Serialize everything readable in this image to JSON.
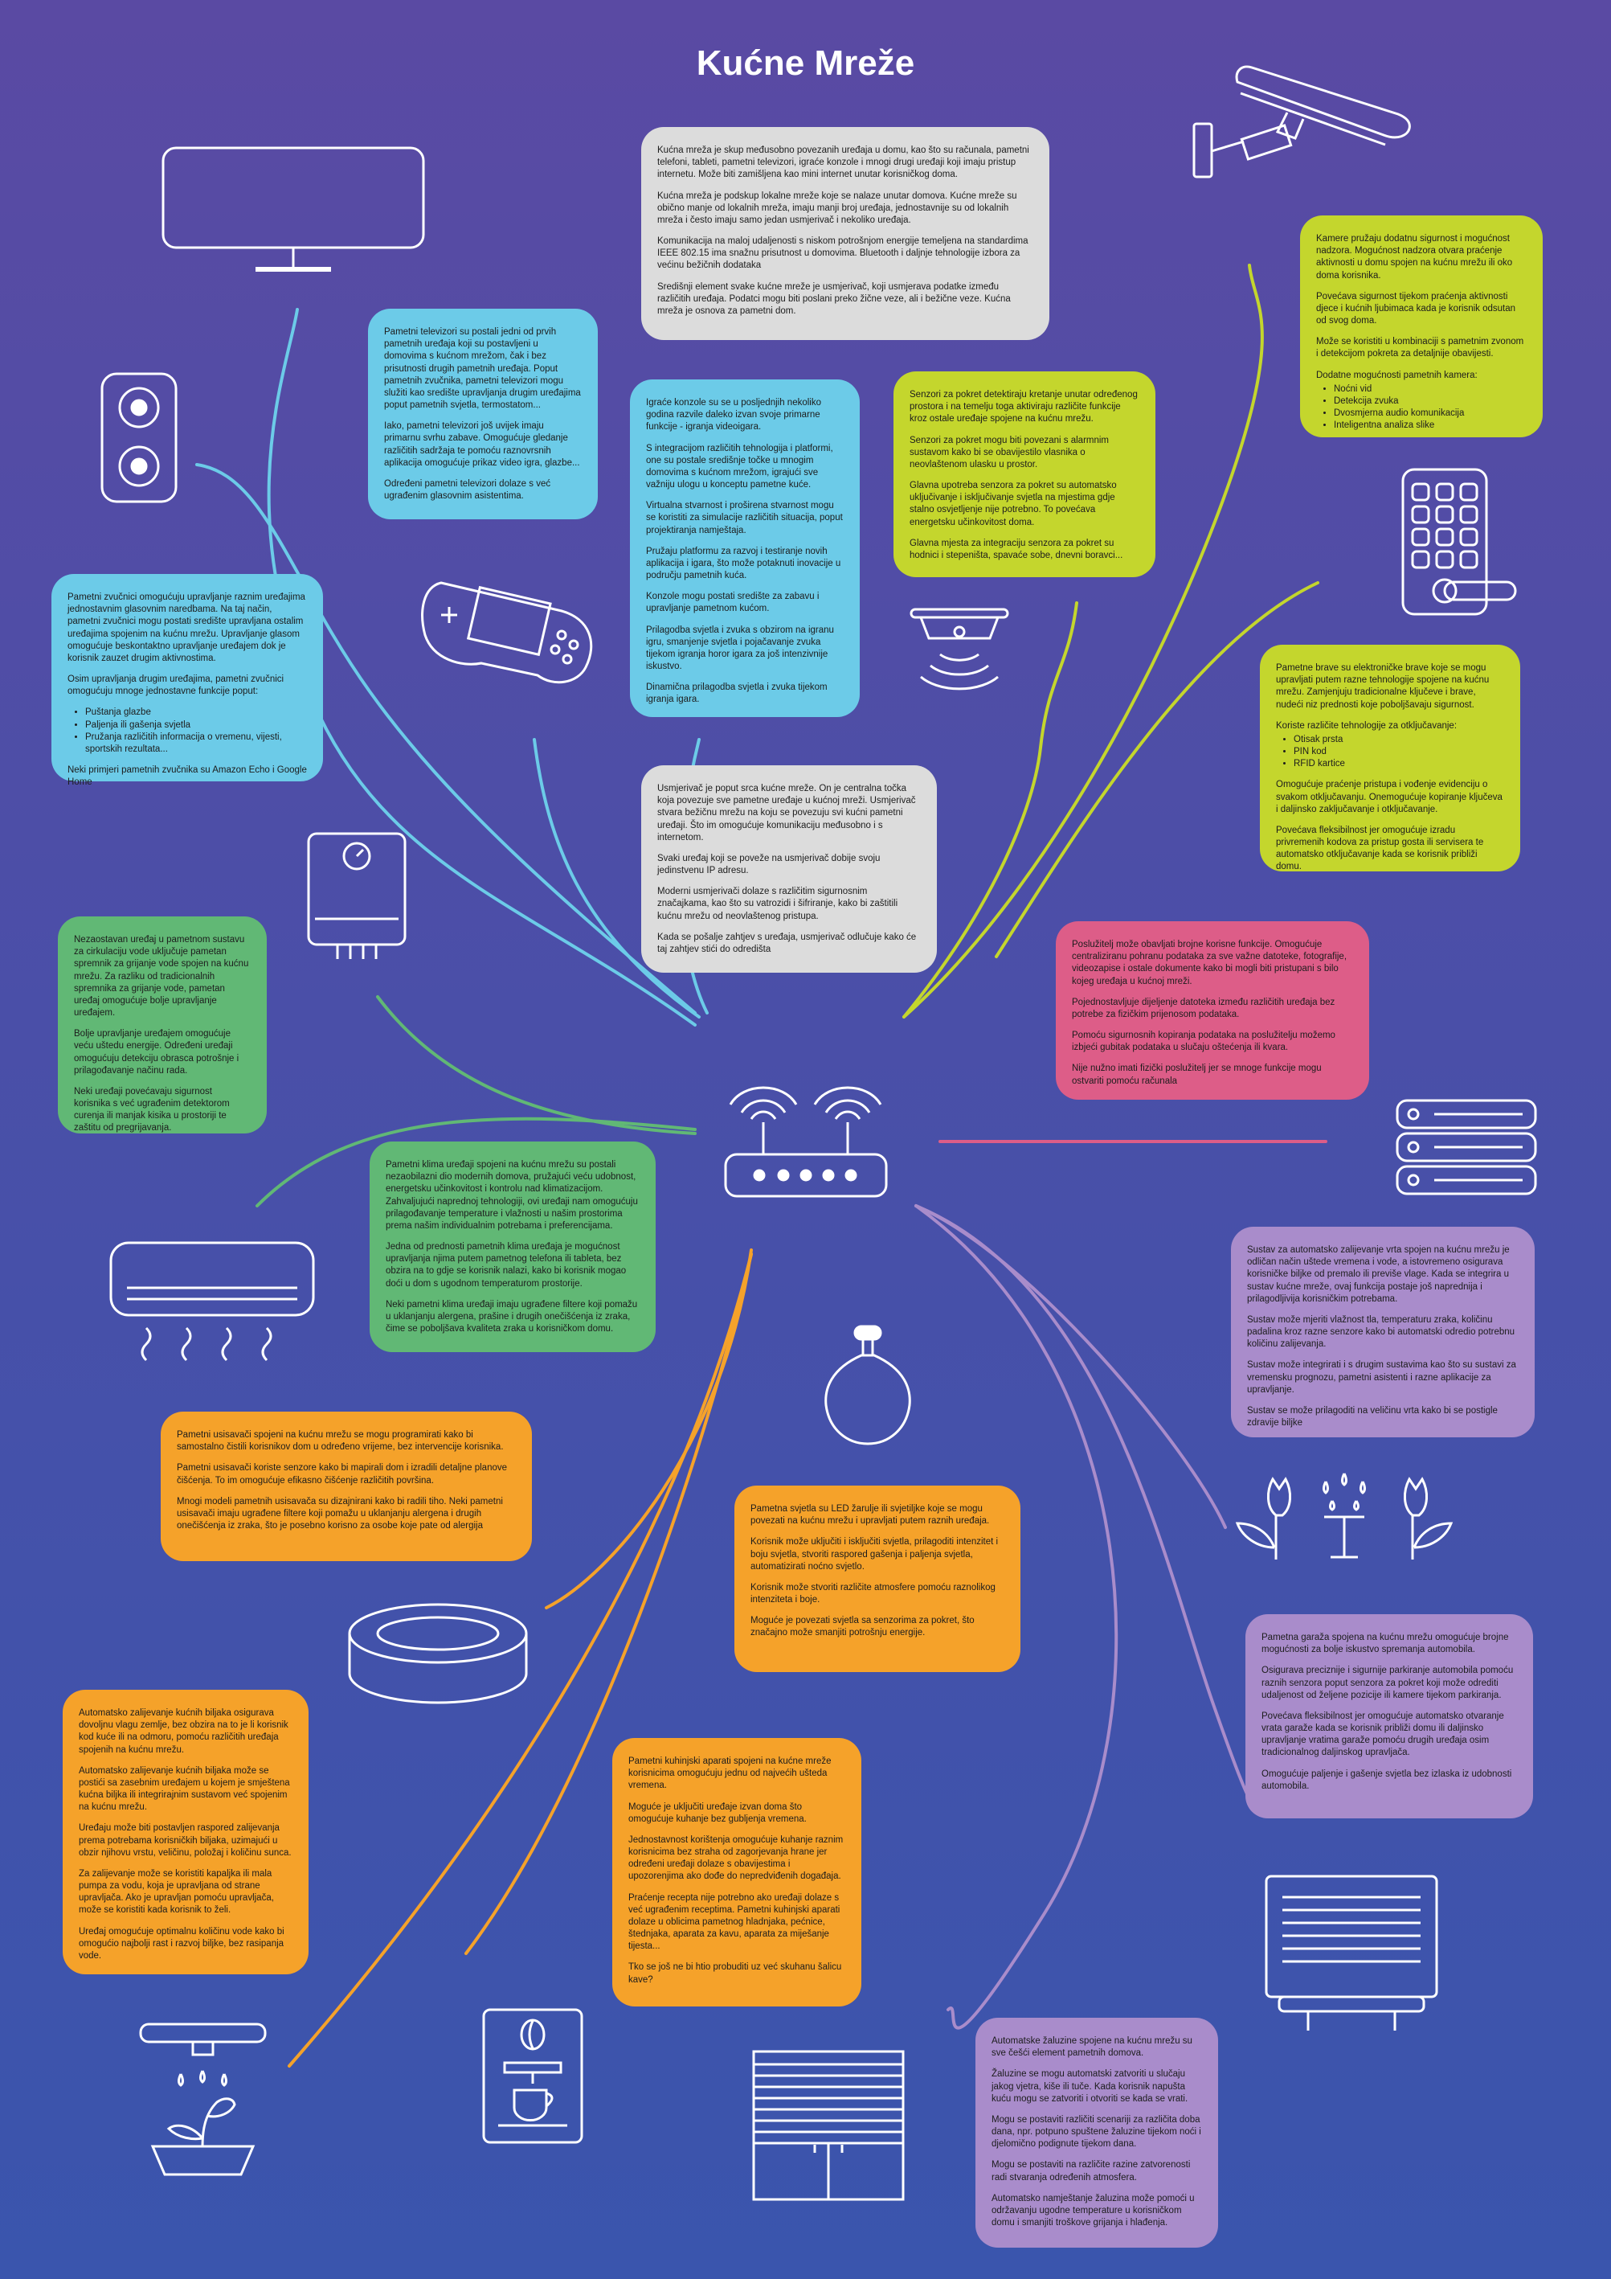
{
  "page": {
    "title": "Kućne Mreže",
    "colors": {
      "background_top": "#5a4aa3",
      "background_bottom": "#3a55ad",
      "line": "#ffffff"
    }
  },
  "icons": [
    "tv-icon",
    "speaker-icon",
    "game-console-icon",
    "water-heater-icon",
    "air-conditioner-icon",
    "robot-vacuum-icon",
    "watering-can-icon",
    "coffee-machine-icon",
    "blinds-icon",
    "garage-door-icon",
    "flower-sprinkler-icon",
    "server-icon",
    "light-bulb-icon",
    "router-icon",
    "motion-sensor-icon",
    "keypad-lock-icon",
    "security-camera-icon"
  ],
  "cards": {
    "intro": {
      "color": "#dcdcdc",
      "paragraphs": [
        "Kućna mreža je skup međusobno povezanih uređaja u domu, kao što su računala, pametni telefoni, tableti, pametni televizori, igraće konzole i mnogi drugi uređaji koji imaju pristup internetu. Može biti zamišljena kao mini internet unutar korisničkog doma.",
        "Kućna mreža je podskup lokalne mreže koje se nalaze unutar domova. Kućne mreže su obično manje od lokalnih mreža, imaju manji broj uređaja, jednostavnije su od lokalnih mreža i često imaju samo jedan usmjerivač i nekoliko uređaja.",
        "Komunikacija na maloj udaljenosti s niskom potrošnjom energije temeljena na standardima IEEE 802.15 ima snažnu prisutnost u domovima. Bluetooth i daljnje tehnologije izbora za većinu bežičnih dodataka",
        "Središnji element svake kućne mreže je usmjerivač, koji usmjerava podatke između različitih uređaja. Podatci mogu biti poslani preko žične veze, ali i bežične veze. Kućna mreža je osnova za pametni dom."
      ]
    },
    "tv": {
      "color": "#6ccbe8",
      "paragraphs": [
        "Pametni televizori su postali jedni od prvih pametnih uređaja koji su postavljeni u domovima s kućnom mrežom, čak i bez prisutnosti drugih pametnih uređaja. Poput pametnih zvučnika, pametni televizori mogu služiti kao središte upravljanja drugim uređajima poput pametnih svjetla, termostatom...",
        "Iako, pametni televizori još uvijek imaju primarnu svrhu zabave. Omogućuje gledanje različitih sadržaja te pomoću raznovrsnih aplikacija omogućuje prikaz video igra, glazbe...",
        "Određeni pametni televizori dolaze s već ugrađenim glasovnim asistentima."
      ]
    },
    "speaker": {
      "color": "#6ccbe8",
      "paragraphs": [
        "Pametni zvučnici omogućuju upravljanje raznim uređajima jednostavnim glasovnim naredbama. Na taj način, pametni zvučnici mogu postati središte upravljana ostalim uređajima spojenim na kućnu mrežu. Upravljanje glasom omogućuje beskontaktno upravljanje uređajem dok je korisnik zauzet drugim aktivnostima.",
        "Osim upravljanja drugim uređajima, pametni zvučnici omogućuju mnoge jednostavne funkcije poput:"
      ],
      "list": [
        "Puštanja glazbe",
        "Paljenja ili gašenja svjetla",
        "Pružanja različitih informacija o vremenu, vijesti, sportskih rezultata..."
      ],
      "after": [
        "Neki primjeri pametnih zvučnika su Amazon Echo i Google Home"
      ]
    },
    "console": {
      "color": "#6ccbe8",
      "paragraphs": [
        "Igraće konzole su se u posljednjih nekoliko godina razvile daleko izvan svoje primarne funkcije - igranja videoigara.",
        "S integracijom različitih tehnologija i platformi, one su postale središnje točke u mnogim domovima s kućnom mrežom, igrajući sve važniju ulogu u konceptu pametne kuće.",
        "Virtualna stvarnost i proširena stvarnost mogu se koristiti za simulacije različitih situacija, poput projektiranja namještaja.",
        "Pružaju platformu za razvoj i testiranje novih aplikacija i igara, što može potaknuti inovacije u području pametnih kuća.",
        "Konzole mogu postati središte za zabavu i upravljanje pametnom kućom.",
        "Prilagodba svjetla i zvuka s obzirom na igranu igru, smanjenje svjetla i pojačavanje zvuka tijekom igranja horor igara za još intenzivnije iskustvo.",
        "Dinamična prilagodba svjetla i zvuka tijekom igranja igara."
      ]
    },
    "sensor": {
      "color": "#c4d62d",
      "paragraphs": [
        "Senzori za pokret detektiraju kretanje unutar određenog prostora i na temelju toga aktiviraju različite funkcije kroz ostale uređaje spojene na kućnu mrežu.",
        "Senzori za pokret mogu biti povezani s alarmnim sustavom kako bi se obavijestilo vlasnika o neovlaštenom ulasku u prostor.",
        "Glavna upotreba senzora za pokret su automatsko uključivanje i isključivanje svjetla na mjestima gdje stalno osvjetljenje nije potrebno. To povećava energetsku učinkovitost doma.",
        "Glavna mjesta za integraciju senzora za pokret su hodnici i stepeništa, spavaće sobe, dnevni boravci..."
      ]
    },
    "camera": {
      "color": "#c4d62d",
      "paragraphs": [
        "Kamere pružaju dodatnu sigurnost i mogućnost nadzora. Mogućnost nadzora otvara praćenje aktivnosti u domu spojen na kućnu mrežu ili oko doma korisnika.",
        "Povećava sigurnost tijekom praćenja aktivnosti djece i kućnih ljubimaca kada je korisnik odsutan od svog doma.",
        "Može se koristiti u kombinaciji s pametnim zvonom i detekcijom pokreta za detaljnije obavijesti.",
        "Dodatne mogućnosti pametnih kamera:"
      ],
      "list": [
        "Noćni vid",
        "Detekcija zvuka",
        "Dvosmjerna audio komunikacija",
        "Inteligentna analiza slike"
      ]
    },
    "lock": {
      "color": "#c4d62d",
      "paragraphs": [
        "Pametne brave su elektroničke brave koje se mogu upravljati putem razne tehnologije spojene na kućnu mrežu. Zamjenjuju tradicionalne ključeve i brave, nudeći niz prednosti koje poboljšavaju sigurnost.",
        "Koriste različite tehnologije za otključavanje:"
      ],
      "list": [
        "Otisak prsta",
        "PIN kod",
        "RFID kartice"
      ],
      "after": [
        "Omogućuje praćenje pristupa i vođenje evidenciju o svakom otključavanju. Onemogućuje kopiranje ključeva i daljinsko zaključavanje i otključavanje.",
        "Povećava fleksibilnost jer omogućuje izradu privremenih kodova za pristup gosta ili servisera te automatsko otključavanje kada se korisnik približi domu."
      ]
    },
    "router": {
      "color": "#dcdcdc",
      "paragraphs": [
        "Usmjerivač je poput srca kućne mreže. On je centralna točka koja povezuje sve pametne uređaje u kućnoj mreži. Usmjerivač stvara bežičnu mrežu na koju se povezuju svi kućni pametni uređaji. Što im omogućuje komunikaciju međusobno i s internetom.",
        "Svaki uređaj koji se poveže na usmjerivač dobije svoju jedinstvenu IP adresu.",
        "Moderni usmjerivači dolaze s različitim sigurnosnim značajkama, kao što su vatrozidi i šifriranje, kako bi zaštitili kućnu mrežu od neovlaštenog pristupa.",
        "Kada se pošalje zahtjev s uređaja, usmjerivač odlučuje kako će taj zahtjev stići do odredišta"
      ]
    },
    "server": {
      "color": "#dd5d88",
      "paragraphs": [
        "Poslužitelj može obavljati brojne korisne funkcije. Omogućuje centraliziranu pohranu podataka za sve važne datoteke, fotografije, videozapise i ostale dokumente kako bi mogli biti pristupani s bilo kojeg uređaja u kućnoj mreži.",
        "Pojednostavljuje dijeljenje datoteka između različitih uređaja bez potrebe za fizičkim prijenosom podataka.",
        "Pomoću sigurnosnih kopiranja podataka na poslužitelju možemo izbjeći gubitak podataka u slučaju oštećenja ili kvara.",
        "Nije nužno imati fizički poslužitelj jer se mnoge funkcije mogu ostvariti pomoću računala"
      ]
    },
    "boiler": {
      "color": "#61b875",
      "paragraphs": [
        "Nezaostavan uređaj u pametnom sustavu za cirkulaciju vode uključuje pametan spremnik za grijanje vode spojen na kućnu mrežu. Za razliku od tradicionalnih spremnika za grijanje vode, pametan uređaj omogućuje bolje upravljanje uređajem.",
        "Bolje upravljanje uređajem omogućuje veću uštedu energije. Određeni uređaji omogućuju detekciju obrasca potrošnje i prilagođavanje načinu rada.",
        "Neki uređaji povećavaju sigurnost korisnika s već ugrađenim detektorom curenja ili manjak kisika u prostoriji te zaštitu od pregrijavanja."
      ]
    },
    "ac": {
      "color": "#61b875",
      "paragraphs": [
        "Pametni klima uređaji spojeni na kućnu mrežu su postali nezaobilazni dio modernih domova, pružajući veću udobnost, energetsku učinkovitost i kontrolu nad klimatizacijom. Zahvaljujući naprednoj tehnologiji, ovi uređaji nam omogućuju prilagođavanje temperature i vlažnosti u našim prostorima prema našim individualnim potrebama i preferencijama.",
        "Jedna od prednosti pametnih klima uređaja je mogućnost upravljanja njima putem pametnog telefona ili tableta, bez obzira na to gdje se korisnik nalazi, kako bi korisnik mogao doći u dom s ugodnom temperaturom prostorije.",
        "Neki pametni klima uređaji imaju ugrađene filtere koji pomažu u uklanjanju alergena, prašine i drugih onečišćenja iz zraka, čime se poboljšava kvaliteta zraka u korisničkom domu."
      ]
    },
    "vacuum": {
      "color": "#f5a22a",
      "paragraphs": [
        "Pametni usisavači spojeni na kućnu mrežu se mogu programirati kako bi samostalno čistili korisnikov dom u određeno vrijeme, bez intervencije korisnika.",
        "Pametni usisavači koriste senzore kako bi mapirali dom i izradili detaljne planove čišćenja. To im omogućuje efikasno čišćenje različitih površina.",
        "Mnogi modeli pametnih usisavača su dizajnirani kako bi radili tiho. Neki pametni usisavači imaju ugrađene filtere koji pomažu u uklanjanju alergena i drugih onečišćenja iz zraka, što je posebno korisno za osobe koje pate od alergija"
      ]
    },
    "light": {
      "color": "#f5a22a",
      "paragraphs": [
        "Pametna svjetla su LED žarulje ili svjetiljke koje se mogu povezati na kućnu mrežu i upravljati putem raznih uređaja.",
        "Korisnik može uključiti i isključiti svjetla, prilagoditi intenzitet i boju svjetla, stvoriti raspored gašenja i paljenja svjetla, automatizirati noćno svjetlo.",
        "Korisnik može stvoriti različite atmosfere pomoću raznolikog intenziteta i boje.",
        "Moguće je povezati svjetla sa senzorima za pokret, što značajno može smanjiti potrošnju energije."
      ]
    },
    "watering": {
      "color": "#f5a22a",
      "paragraphs": [
        "Automatsko zalijevanje kućnih biljaka osigurava dovoljnu vlagu zemlje, bez obzira na to je li korisnik kod kuće ili na odmoru, pomoću različitih uređaja spojenih na kućnu mrežu.",
        "Automatsko zalijevanje kućnih biljaka može se postići sa zasebnim uređajem u kojem je smještena kućna biljka ili integrirajnim sustavom već spojenim na kućnu mrežu.",
        "Uređaju može biti postavljen raspored zalijevanja prema potrebama korisničkih biljaka, uzimajući u obzir njihovu vrstu, veličinu, položaj i količinu sunca.",
        "Za zalijevanje može se koristiti kapaljka ili mala pumpa za vodu, koja je upravljana od strane upravljača. Ako je upravljan pomoću upravljača, može se koristiti kada korisnik to želi.",
        "Uređaj omogućuje optimalnu količinu vode kako bi omogućio najbolji rast i razvoj biljke, bez rasipanja vode."
      ]
    },
    "kitchen": {
      "color": "#f5a22a",
      "paragraphs": [
        "Pametni kuhinjski aparati spojeni na kućne mreže korisnicima omogućuju jednu od najvećih ušteda vremena.",
        "Moguće je uključiti uređaje izvan doma što omogućuje kuhanje bez gubljenja vremena.",
        "Jednostavnost korištenja omogućuje kuhanje raznim korisnicima bez straha od zagorjevanja hrane jer određeni uređaji dolaze s obavijestima i upozorenjima ako dođe do nepredviđenih događaja.",
        "Praćenje recepta nije potrebno ako uređaji dolaze s već ugrađenim receptima. Pametni kuhinjski aparati dolaze u oblicima pametnog hladnjaka, pećnice, štednjaka, aparata za kavu, aparata za miješanje tijesta...",
        "Tko se još ne bi htio probuditi uz već skuhanu šalicu kave?"
      ]
    },
    "garden": {
      "color": "#a98ccb",
      "paragraphs": [
        "Sustav za automatsko zalijevanje vrta spojen na kućnu mrežu je odličan način uštede vremena i vode, a istovremeno osigurava korisničke biljke od premalo ili previše vlage. Kada se integrira u sustav kućne mreže, ovaj funkcija postaje još naprednija i prilagodljivija korisničkim potrebama.",
        "Sustav može mjeriti vlažnost tla, temperaturu zraka, količinu padalina kroz razne senzore kako bi automatski odredio potrebnu količinu zalijevanja.",
        "Sustav može integrirati i s drugim sustavima kao što su sustavi za vremensku prognozu, pametni asistenti i razne aplikacije za upravljanje.",
        "Sustav se može prilagoditi na veličinu vrta kako bi se postigle zdravije biljke"
      ]
    },
    "garage": {
      "color": "#a98ccb",
      "paragraphs": [
        "Pametna garaža spojena na kućnu mrežu omogućuje brojne mogućnosti za bolje iskustvo spremanja automobila.",
        "Osigurava preciznije i sigurnije parkiranje automobila pomoću raznih senzora poput senzora za pokret koji može odrediti udaljenost od željene pozicije ili kamere tijekom parkiranja.",
        "Povećava fleksibilnost jer omogućuje automatsko otvaranje vrata garaže kada se korisnik približi domu ili daljinsko upravljanje vratima garaže pomoću drugih uređaja osim tradicionalnog daljinskog upravljača.",
        "Omogućuje paljenje i gašenje svjetla bez izlaska iz udobnosti automobila."
      ]
    },
    "blinds": {
      "color": "#a98ccb",
      "paragraphs": [
        "Automatske žaluzine spojene na kućnu mrežu su sve češći element pametnih domova.",
        "Žaluzine se mogu automatski zatvoriti u slučaju jakog vjetra, kiše ili tuče. Kada korisnik napušta kuću mogu se zatvoriti i otvoriti se kada se vrati.",
        "Mogu se postaviti različiti scenariji za različita doba dana, npr. potpuno spuštene žaluzine tijekom noći i djelomično podignute tijekom dana.",
        "Mogu se postaviti na različite razine zatvorenosti radi stvaranja određenih atmosfera.",
        "Automatsko namještanje žaluzina može pomoći u održavanju ugodne temperature u korisničkom domu i smanjiti troškove grijanja i hlađenja."
      ]
    }
  }
}
